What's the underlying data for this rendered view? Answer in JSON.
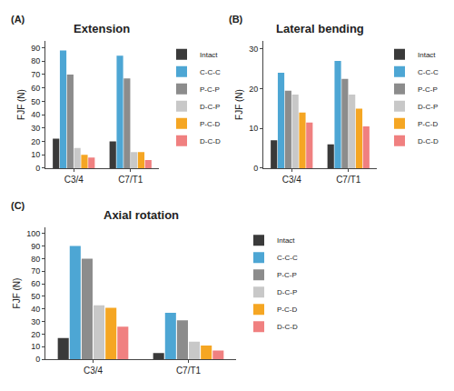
{
  "chart_data": [
    {
      "type": "bar",
      "title": "Extension",
      "annotations": [
        {
          "text": "(A)"
        }
      ],
      "ylabel": "FJF (N)",
      "categories": [
        "C3/4",
        "C7/T1"
      ],
      "series": [
        {
          "name": "Intact",
          "color": "#3a3a3a",
          "values": [
            22,
            20
          ]
        },
        {
          "name": "C-C-C",
          "color": "#4da6d4",
          "values": [
            88,
            84
          ]
        },
        {
          "name": "P-C-P",
          "color": "#8c8c8c",
          "values": [
            70,
            67
          ]
        },
        {
          "name": "D-C-P",
          "color": "#c8c8c8",
          "values": [
            15,
            12
          ]
        },
        {
          "name": "P-C-D",
          "color": "#f5a623",
          "values": [
            10,
            12
          ]
        },
        {
          "name": "D-C-D",
          "color": "#f08080",
          "values": [
            8,
            6
          ]
        }
      ],
      "ylim": [
        0,
        95
      ],
      "yticks": [
        0,
        10,
        20,
        30,
        40,
        50,
        60,
        70,
        80,
        90
      ],
      "grid": false,
      "legend": "right"
    },
    {
      "type": "bar",
      "title": "Lateral bending",
      "annotations": [
        {
          "text": "(B)"
        }
      ],
      "ylabel": "FJF (N)",
      "categories": [
        "C3/4",
        "C7/T1"
      ],
      "series": [
        {
          "name": "Intact",
          "color": "#3a3a3a",
          "values": [
            7,
            6
          ]
        },
        {
          "name": "C-C-C",
          "color": "#4da6d4",
          "values": [
            24,
            27
          ]
        },
        {
          "name": "P-C-P",
          "color": "#8c8c8c",
          "values": [
            19.5,
            22.5
          ]
        },
        {
          "name": "D-C-P",
          "color": "#c8c8c8",
          "values": [
            18.5,
            18.5
          ]
        },
        {
          "name": "P-C-D",
          "color": "#f5a623",
          "values": [
            14,
            15
          ]
        },
        {
          "name": "D-C-D",
          "color": "#f08080",
          "values": [
            11.5,
            10.5
          ]
        }
      ],
      "ylim": [
        0,
        32
      ],
      "yticks": [
        0,
        10,
        20,
        30
      ],
      "grid": false,
      "legend": "right"
    },
    {
      "type": "bar",
      "title": "Axial rotation",
      "annotations": [
        {
          "text": "(C)"
        }
      ],
      "ylabel": "FJF (N)",
      "categories": [
        "C3/4",
        "C7/T1"
      ],
      "series": [
        {
          "name": "Intact",
          "color": "#3a3a3a",
          "values": [
            17,
            5
          ]
        },
        {
          "name": "C-C-C",
          "color": "#4da6d4",
          "values": [
            90,
            37
          ]
        },
        {
          "name": "P-C-P",
          "color": "#8c8c8c",
          "values": [
            80,
            31
          ]
        },
        {
          "name": "D-C-P",
          "color": "#c8c8c8",
          "values": [
            43,
            14
          ]
        },
        {
          "name": "P-C-D",
          "color": "#f5a623",
          "values": [
            41,
            11
          ]
        },
        {
          "name": "D-C-D",
          "color": "#f08080",
          "values": [
            26,
            7
          ]
        }
      ],
      "ylim": [
        0,
        105
      ],
      "yticks": [
        0,
        10,
        20,
        30,
        40,
        50,
        60,
        70,
        80,
        90,
        100
      ],
      "grid": false,
      "legend": "right"
    }
  ]
}
